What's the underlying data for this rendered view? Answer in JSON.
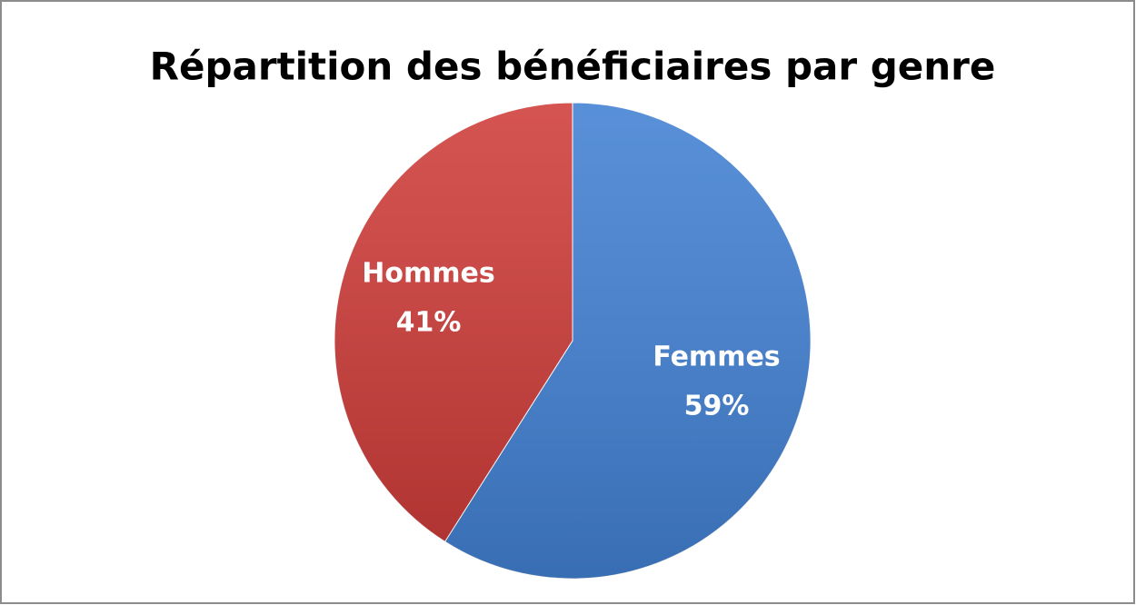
{
  "chart_data": {
    "type": "pie",
    "title": "Répartition des bénéficiaires par genre",
    "categories": [
      "Femmes",
      "Hommes"
    ],
    "values": [
      59,
      41
    ],
    "value_labels": [
      "59%",
      "41%"
    ],
    "colors": [
      "#4281d3",
      "#cf3d3a"
    ]
  }
}
